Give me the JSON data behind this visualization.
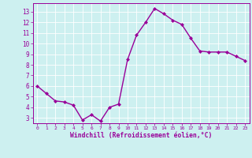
{
  "x": [
    0,
    1,
    2,
    3,
    4,
    5,
    6,
    7,
    8,
    9,
    10,
    11,
    12,
    13,
    14,
    15,
    16,
    17,
    18,
    19,
    20,
    21,
    22,
    23
  ],
  "y": [
    6.0,
    5.3,
    4.6,
    4.5,
    4.2,
    2.8,
    3.3,
    2.7,
    4.0,
    4.3,
    8.5,
    10.8,
    12.0,
    13.3,
    12.8,
    12.2,
    11.8,
    10.5,
    9.3,
    9.2,
    9.2,
    9.2,
    8.8,
    8.4
  ],
  "line_color": "#990099",
  "marker": "D",
  "marker_size": 2.0,
  "bg_color": "#cdf0f0",
  "grid_color": "#ffffff",
  "xlabel": "Windchill (Refroidissement éolien,°C)",
  "xlabel_color": "#990099",
  "tick_color": "#990099",
  "spine_color": "#990099",
  "ylim": [
    2.5,
    13.8
  ],
  "xlim": [
    -0.5,
    23.5
  ],
  "yticks": [
    3,
    4,
    5,
    6,
    7,
    8,
    9,
    10,
    11,
    12,
    13
  ],
  "xticks": [
    0,
    1,
    2,
    3,
    4,
    5,
    6,
    7,
    8,
    9,
    10,
    11,
    12,
    13,
    14,
    15,
    16,
    17,
    18,
    19,
    20,
    21,
    22,
    23
  ],
  "xlabel_fontsize": 5.8,
  "xtick_fontsize": 4.5,
  "ytick_fontsize": 5.5,
  "linewidth": 1.0
}
